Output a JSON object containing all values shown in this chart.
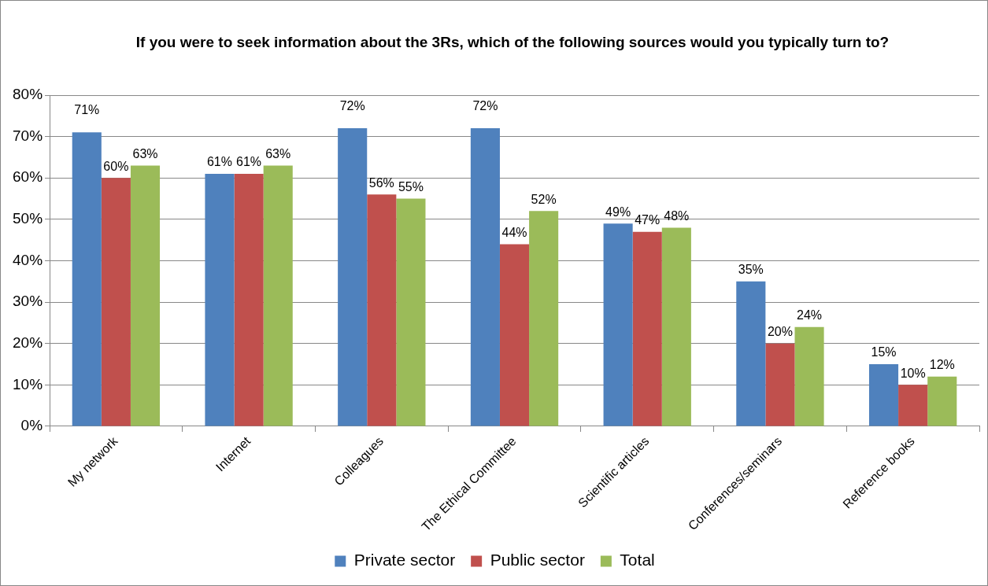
{
  "chart_data": {
    "type": "bar",
    "title": "If you were to seek information about the 3Rs, which of the following sources would you typically turn to?",
    "categories": [
      "My network",
      "Internet",
      "Colleagues",
      "The Ethical Committee",
      "Scientific articles",
      "Conferences/seminars",
      "Reference books"
    ],
    "series": [
      {
        "name": "Private sector",
        "color": "#4f81bd",
        "values": [
          71,
          61,
          72,
          72,
          49,
          35,
          15
        ],
        "value_labels": [
          "71%",
          "61%",
          "72%",
          "72%",
          "49%",
          "35%",
          "15%"
        ]
      },
      {
        "name": "Public sector",
        "color": "#c0504d",
        "values": [
          60,
          61,
          56,
          44,
          47,
          20,
          10
        ],
        "value_labels": [
          "60%",
          "61%",
          "56%",
          "44%",
          "47%",
          "20%",
          "10%"
        ]
      },
      {
        "name": "Total",
        "color": "#9bbb59",
        "values": [
          63,
          63,
          55,
          52,
          48,
          24,
          12
        ],
        "value_labels": [
          "63%",
          "63%",
          "55%",
          "52%",
          "48%",
          "24%",
          "12%"
        ]
      }
    ],
    "ylim": [
      0,
      80
    ],
    "yticks": [
      {
        "value": 0,
        "label": "0%"
      },
      {
        "value": 10,
        "label": "10%"
      },
      {
        "value": 20,
        "label": "20%"
      },
      {
        "value": 30,
        "label": "30%"
      },
      {
        "value": 40,
        "label": "40%"
      },
      {
        "value": 50,
        "label": "50%"
      },
      {
        "value": 60,
        "label": "60%"
      },
      {
        "value": 70,
        "label": "70%"
      },
      {
        "value": 80,
        "label": "80%"
      }
    ],
    "grid": "y",
    "legend": "bottom"
  }
}
